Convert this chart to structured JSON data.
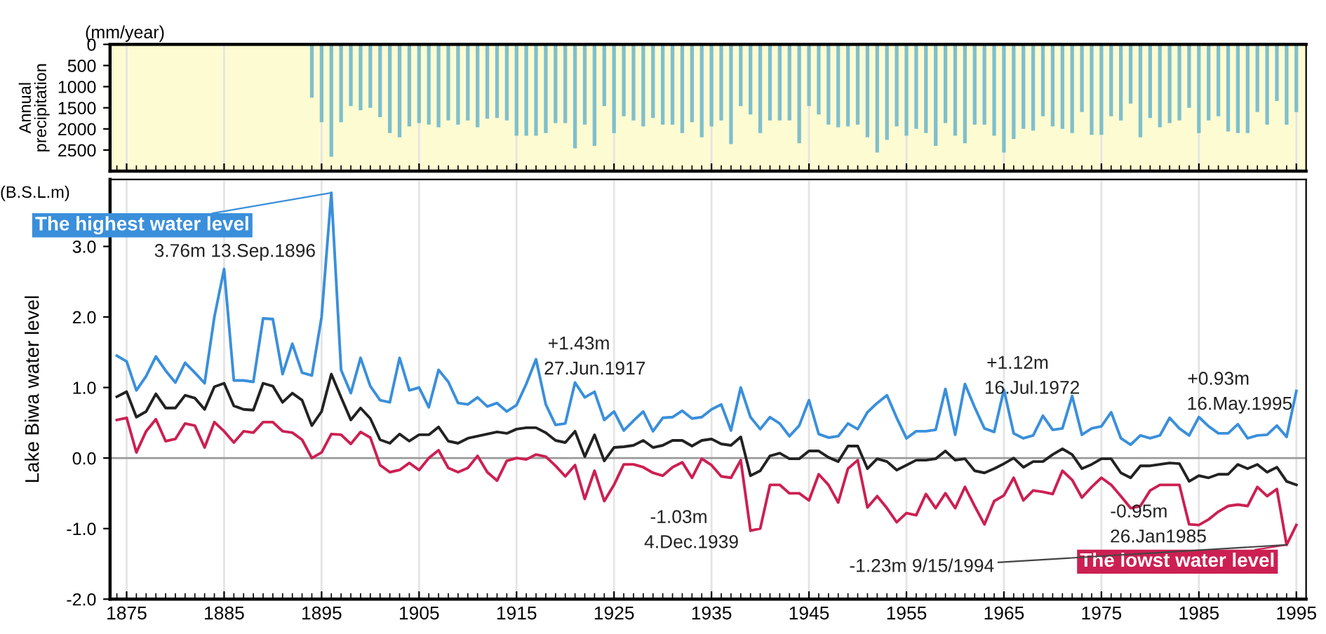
{
  "chart_data": [
    {
      "type": "bar",
      "ylabel": "Annual precipitation",
      "annotations": [
        "(mm/year)"
      ],
      "x": [
        1894,
        1895,
        1896,
        1897,
        1898,
        1899,
        1900,
        1901,
        1902,
        1903,
        1904,
        1905,
        1906,
        1907,
        1908,
        1909,
        1910,
        1911,
        1912,
        1913,
        1914,
        1915,
        1916,
        1917,
        1918,
        1919,
        1920,
        1921,
        1922,
        1923,
        1924,
        1925,
        1926,
        1927,
        1928,
        1929,
        1930,
        1931,
        1932,
        1933,
        1934,
        1935,
        1936,
        1937,
        1938,
        1939,
        1940,
        1941,
        1942,
        1943,
        1944,
        1945,
        1946,
        1947,
        1948,
        1949,
        1950,
        1951,
        1952,
        1953,
        1954,
        1955,
        1956,
        1957,
        1958,
        1959,
        1960,
        1961,
        1962,
        1963,
        1964,
        1965,
        1966,
        1967,
        1968,
        1969,
        1970,
        1971,
        1972,
        1973,
        1974,
        1975,
        1976,
        1977,
        1978,
        1979,
        1980,
        1981,
        1982,
        1983,
        1984,
        1985,
        1986,
        1987,
        1988,
        1989,
        1990,
        1991,
        1992,
        1993,
        1994,
        1995
      ],
      "series": [
        {
          "color": "#7fbfcc",
          "values": [
            1260,
            1840,
            2660,
            1840,
            1460,
            1560,
            1500,
            1720,
            2100,
            2200,
            1940,
            1860,
            1900,
            1960,
            1800,
            1900,
            1800,
            1960,
            1760,
            1740,
            1800,
            2160,
            2160,
            2160,
            2100,
            1860,
            1860,
            2460,
            1900,
            2400,
            1460,
            2100,
            1700,
            1800,
            1940,
            1740,
            1900,
            1900,
            2100,
            1840,
            2200,
            1940,
            1800,
            2360,
            1460,
            1660,
            2100,
            1800,
            1800,
            1800,
            2340,
            1460,
            1660,
            1900,
            1960,
            1940,
            1900,
            2200,
            2560,
            2260,
            1940,
            2160,
            2000,
            2100,
            2400,
            1860,
            2160,
            2340,
            1900,
            1900,
            2160,
            2560,
            2240,
            2000,
            2040,
            1700,
            1940,
            2000,
            2100,
            1600,
            2140,
            2140,
            1700,
            1800,
            1400,
            2200,
            1740,
            1960,
            1860,
            1800,
            1500,
            2100,
            1800,
            1700,
            2060,
            2100,
            2100,
            1600,
            1900,
            1340,
            1900,
            1600
          ]
        }
      ],
      "xlim": [
        1873.3,
        1996
      ],
      "ylim": [
        3000,
        0
      ],
      "yticks": [
        0,
        500,
        1000,
        1500,
        2000,
        2500
      ],
      "xticks": [
        {
          "value": 1874,
          "label": null
        },
        1875,
        {
          "value": 1876,
          "label": null
        },
        {
          "value": 1877,
          "label": null
        },
        {
          "value": 1878,
          "label": null
        },
        {
          "value": 1879,
          "label": null
        },
        {
          "value": 1880,
          "label": null
        },
        {
          "value": 1881,
          "label": null
        },
        {
          "value": 1882,
          "label": null
        },
        {
          "value": 1883,
          "label": null
        },
        {
          "value": 1884,
          "label": null
        },
        1885,
        {
          "value": 1886,
          "label": null
        },
        {
          "value": 1887,
          "label": null
        },
        {
          "value": 1888,
          "label": null
        },
        {
          "value": 1889,
          "label": null
        },
        {
          "value": 1890,
          "label": null
        },
        {
          "value": 1891,
          "label": null
        },
        {
          "value": 1892,
          "label": null
        },
        {
          "value": 1893,
          "label": null
        },
        {
          "value": 1894,
          "label": null
        },
        1895,
        {
          "value": 1896,
          "label": null
        },
        {
          "value": 1897,
          "label": null
        },
        {
          "value": 1898,
          "label": null
        },
        {
          "value": 1899,
          "label": null
        },
        {
          "value": 1900,
          "label": null
        },
        {
          "value": 1901,
          "label": null
        },
        {
          "value": 1902,
          "label": null
        },
        {
          "value": 1903,
          "label": null
        },
        {
          "value": 1904,
          "label": null
        },
        1905,
        {
          "value": 1906,
          "label": null
        },
        {
          "value": 1907,
          "label": null
        },
        {
          "value": 1908,
          "label": null
        },
        {
          "value": 1909,
          "label": null
        },
        {
          "value": 1910,
          "label": null
        },
        {
          "value": 1911,
          "label": null
        },
        {
          "value": 1912,
          "label": null
        },
        {
          "value": 1913,
          "label": null
        },
        {
          "value": 1914,
          "label": null
        },
        1915,
        {
          "value": 1916,
          "label": null
        },
        {
          "value": 1917,
          "label": null
        },
        {
          "value": 1918,
          "label": null
        },
        {
          "value": 1919,
          "label": null
        },
        {
          "value": 1920,
          "label": null
        },
        {
          "value": 1921,
          "label": null
        },
        {
          "value": 1922,
          "label": null
        },
        {
          "value": 1923,
          "label": null
        },
        {
          "value": 1924,
          "label": null
        },
        1925,
        {
          "value": 1926,
          "label": null
        },
        {
          "value": 1927,
          "label": null
        },
        {
          "value": 1928,
          "label": null
        },
        {
          "value": 1929,
          "label": null
        },
        {
          "value": 1930,
          "label": null
        },
        {
          "value": 1931,
          "label": null
        },
        {
          "value": 1932,
          "label": null
        },
        {
          "value": 1933,
          "label": null
        },
        {
          "value": 1934,
          "label": null
        },
        1935,
        {
          "value": 1936,
          "label": null
        },
        {
          "value": 1937,
          "label": null
        },
        {
          "value": 1938,
          "label": null
        },
        {
          "value": 1939,
          "label": null
        },
        {
          "value": 1940,
          "label": null
        },
        {
          "value": 1941,
          "label": null
        },
        {
          "value": 1942,
          "label": null
        },
        {
          "value": 1943,
          "label": null
        },
        {
          "value": 1944,
          "label": null
        },
        1945,
        {
          "value": 1946,
          "label": null
        },
        {
          "value": 1947,
          "label": null
        },
        {
          "value": 1948,
          "label": null
        },
        {
          "value": 1949,
          "label": null
        },
        {
          "value": 1950,
          "label": null
        },
        {
          "value": 1951,
          "label": null
        },
        {
          "value": 1952,
          "label": null
        },
        {
          "value": 1953,
          "label": null
        },
        {
          "value": 1954,
          "label": null
        },
        1955,
        {
          "value": 1956,
          "label": null
        },
        {
          "value": 1957,
          "label": null
        },
        {
          "value": 1958,
          "label": null
        },
        {
          "value": 1959,
          "label": null
        },
        {
          "value": 1960,
          "label": null
        },
        {
          "value": 1961,
          "label": null
        },
        {
          "value": 1962,
          "label": null
        },
        {
          "value": 1963,
          "label": null
        },
        {
          "value": 1964,
          "label": null
        },
        1965,
        {
          "value": 1966,
          "label": null
        },
        {
          "value": 1967,
          "label": null
        },
        {
          "value": 1968,
          "label": null
        },
        {
          "value": 1969,
          "label": null
        },
        {
          "value": 1970,
          "label": null
        },
        {
          "value": 1971,
          "label": null
        },
        {
          "value": 1972,
          "label": null
        },
        {
          "value": 1973,
          "label": null
        },
        {
          "value": 1974,
          "label": null
        },
        1975,
        {
          "value": 1976,
          "label": null
        },
        {
          "value": 1977,
          "label": null
        },
        {
          "value": 1978,
          "label": null
        },
        {
          "value": 1979,
          "label": null
        },
        {
          "value": 1980,
          "label": null
        },
        {
          "value": 1981,
          "label": null
        },
        {
          "value": 1982,
          "label": null
        },
        {
          "value": 1983,
          "label": null
        },
        {
          "value": 1984,
          "label": null
        },
        1985,
        {
          "value": 1986,
          "label": null
        },
        {
          "value": 1987,
          "label": null
        },
        {
          "value": 1988,
          "label": null
        },
        {
          "value": 1989,
          "label": null
        },
        {
          "value": 1990,
          "label": null
        },
        {
          "value": 1991,
          "label": null
        },
        {
          "value": 1992,
          "label": null
        },
        {
          "value": 1993,
          "label": null
        },
        {
          "value": 1994,
          "label": null
        },
        1995
      ],
      "grid": "x",
      "tick_labels": "y"
    },
    {
      "type": "line",
      "ylabel": "Lake Biwa water level",
      "marker": "none",
      "line_style": "solid",
      "grid": "x",
      "x": [
        1874,
        1875,
        1876,
        1877,
        1878,
        1879,
        1880,
        1881,
        1882,
        1883,
        1884,
        1885,
        1886,
        1887,
        1888,
        1889,
        1890,
        1891,
        1892,
        1893,
        1894,
        1895,
        1896,
        1897,
        1898,
        1899,
        1900,
        1901,
        1902,
        1903,
        1904,
        1905,
        1906,
        1907,
        1908,
        1909,
        1910,
        1911,
        1912,
        1913,
        1914,
        1915,
        1916,
        1917,
        1918,
        1919,
        1920,
        1921,
        1922,
        1923,
        1924,
        1925,
        1926,
        1927,
        1928,
        1929,
        1930,
        1931,
        1932,
        1933,
        1934,
        1935,
        1936,
        1937,
        1938,
        1939,
        1940,
        1941,
        1942,
        1943,
        1944,
        1945,
        1946,
        1947,
        1948,
        1949,
        1950,
        1951,
        1952,
        1953,
        1954,
        1955,
        1956,
        1957,
        1958,
        1959,
        1960,
        1961,
        1962,
        1963,
        1964,
        1965,
        1966,
        1967,
        1968,
        1969,
        1970,
        1971,
        1972,
        1973,
        1974,
        1975,
        1976,
        1977,
        1978,
        1979,
        1980,
        1981,
        1982,
        1983,
        1984,
        1985,
        1986,
        1987,
        1988,
        1989,
        1990,
        1991,
        1992,
        1993,
        1994,
        1995
      ],
      "series": [
        {
          "color": "#3a8fdb",
          "values": [
            1.45,
            1.37,
            0.96,
            1.16,
            1.44,
            1.24,
            1.07,
            1.35,
            1.21,
            1.06,
            2.0,
            2.68,
            1.1,
            1.1,
            1.08,
            1.98,
            1.97,
            1.19,
            1.62,
            1.21,
            1.17,
            2.0,
            3.76,
            1.25,
            0.92,
            1.42,
            1.02,
            0.82,
            0.79,
            1.42,
            0.96,
            1.0,
            0.72,
            1.25,
            1.08,
            0.78,
            0.76,
            0.86,
            0.73,
            0.78,
            0.66,
            0.75,
            1.05,
            1.4,
            0.76,
            0.47,
            0.49,
            1.07,
            0.86,
            0.94,
            0.54,
            0.66,
            0.39,
            0.53,
            0.66,
            0.38,
            0.57,
            0.58,
            0.67,
            0.56,
            0.58,
            0.69,
            0.76,
            0.39,
            1.0,
            0.58,
            0.41,
            0.58,
            0.49,
            0.31,
            0.46,
            0.82,
            0.34,
            0.29,
            0.31,
            0.49,
            0.41,
            0.65,
            0.78,
            0.89,
            0.57,
            0.28,
            0.38,
            0.38,
            0.4,
            0.98,
            0.33,
            1.05,
            0.72,
            0.42,
            0.37,
            0.97,
            0.35,
            0.28,
            0.32,
            0.6,
            0.4,
            0.42,
            0.88,
            0.33,
            0.42,
            0.45,
            0.65,
            0.28,
            0.19,
            0.32,
            0.28,
            0.32,
            0.57,
            0.42,
            0.32,
            0.58,
            0.45,
            0.35,
            0.35,
            0.48,
            0.28,
            0.32,
            0.33,
            0.46,
            0.3,
            0.95
          ]
        },
        {
          "color": "#222222",
          "values": [
            0.87,
            0.94,
            0.58,
            0.66,
            0.91,
            0.71,
            0.71,
            0.89,
            0.85,
            0.69,
            1.01,
            1.06,
            0.74,
            0.69,
            0.68,
            1.06,
            1.02,
            0.79,
            0.92,
            0.82,
            0.46,
            0.66,
            1.19,
            0.86,
            0.54,
            0.71,
            0.56,
            0.26,
            0.21,
            0.34,
            0.24,
            0.33,
            0.33,
            0.44,
            0.24,
            0.21,
            0.28,
            0.31,
            0.34,
            0.37,
            0.35,
            0.41,
            0.43,
            0.43,
            0.36,
            0.25,
            0.22,
            0.38,
            0.02,
            0.33,
            -0.04,
            0.15,
            0.16,
            0.18,
            0.25,
            0.15,
            0.18,
            0.25,
            0.25,
            0.17,
            0.25,
            0.27,
            0.2,
            0.18,
            0.3,
            -0.25,
            -0.18,
            0.03,
            0.07,
            -0.01,
            -0.01,
            0.1,
            0.1,
            0.01,
            -0.05,
            0.17,
            0.17,
            -0.15,
            -0.01,
            -0.05,
            -0.17,
            -0.1,
            -0.03,
            -0.03,
            -0.01,
            0.1,
            -0.03,
            -0.01,
            -0.18,
            -0.21,
            -0.15,
            -0.08,
            0.0,
            -0.13,
            -0.05,
            -0.05,
            0.05,
            0.13,
            0.05,
            -0.15,
            -0.09,
            -0.01,
            -0.01,
            -0.21,
            -0.28,
            -0.11,
            -0.11,
            -0.09,
            -0.07,
            -0.08,
            -0.33,
            -0.25,
            -0.28,
            -0.23,
            -0.23,
            -0.09,
            -0.15,
            -0.09,
            -0.2,
            -0.13,
            -0.33,
            -0.38
          ]
        },
        {
          "color": "#cc2052",
          "values": [
            0.54,
            0.57,
            0.08,
            0.38,
            0.55,
            0.24,
            0.27,
            0.49,
            0.46,
            0.15,
            0.51,
            0.38,
            0.22,
            0.38,
            0.36,
            0.51,
            0.51,
            0.38,
            0.36,
            0.26,
            0.0,
            0.08,
            0.34,
            0.33,
            0.2,
            0.37,
            0.29,
            -0.1,
            -0.2,
            -0.17,
            -0.07,
            -0.17,
            0.0,
            0.11,
            -0.14,
            -0.2,
            -0.14,
            0.03,
            -0.2,
            -0.32,
            -0.04,
            0.0,
            -0.02,
            0.05,
            0.02,
            -0.11,
            -0.26,
            -0.1,
            -0.58,
            -0.18,
            -0.61,
            -0.38,
            -0.09,
            -0.09,
            -0.13,
            -0.21,
            -0.25,
            -0.13,
            -0.06,
            -0.28,
            -0.01,
            -0.1,
            -0.26,
            -0.28,
            -0.03,
            -1.03,
            -1.0,
            -0.38,
            -0.38,
            -0.5,
            -0.5,
            -0.6,
            -0.23,
            -0.38,
            -0.63,
            -0.15,
            -0.03,
            -0.7,
            -0.54,
            -0.71,
            -0.91,
            -0.78,
            -0.81,
            -0.51,
            -0.71,
            -0.5,
            -0.71,
            -0.41,
            -0.68,
            -0.94,
            -0.61,
            -0.53,
            -0.28,
            -0.6,
            -0.46,
            -0.48,
            -0.51,
            -0.18,
            -0.31,
            -0.56,
            -0.41,
            -0.28,
            -0.38,
            -0.54,
            -0.71,
            -0.68,
            -0.46,
            -0.38,
            -0.38,
            -0.38,
            -0.94,
            -0.95,
            -0.87,
            -0.76,
            -0.68,
            -0.66,
            -0.68,
            -0.41,
            -0.54,
            -0.44,
            -1.23,
            -0.95
          ]
        }
      ],
      "xlim": [
        1873.3,
        1996
      ],
      "ylim": [
        -2.0,
        3.95
      ],
      "yticks": [
        {
          "value": -2,
          "label": "-2.0"
        },
        {
          "value": -1,
          "label": "-1.0"
        },
        {
          "value": 0,
          "label": "0.0"
        },
        {
          "value": 1,
          "label": "1.0"
        },
        {
          "value": 2,
          "label": "2.0"
        },
        {
          "value": 3,
          "label": "3.0"
        }
      ],
      "xticks": [
        {
          "value": 1874,
          "label": null
        },
        1875,
        {
          "value": 1876,
          "label": null
        },
        {
          "value": 1877,
          "label": null
        },
        {
          "value": 1878,
          "label": null
        },
        {
          "value": 1879,
          "label": null
        },
        {
          "value": 1880,
          "label": null
        },
        {
          "value": 1881,
          "label": null
        },
        {
          "value": 1882,
          "label": null
        },
        {
          "value": 1883,
          "label": null
        },
        {
          "value": 1884,
          "label": null
        },
        1885,
        {
          "value": 1886,
          "label": null
        },
        {
          "value": 1887,
          "label": null
        },
        {
          "value": 1888,
          "label": null
        },
        {
          "value": 1889,
          "label": null
        },
        {
          "value": 1890,
          "label": null
        },
        {
          "value": 1891,
          "label": null
        },
        {
          "value": 1892,
          "label": null
        },
        {
          "value": 1893,
          "label": null
        },
        {
          "value": 1894,
          "label": null
        },
        1895,
        {
          "value": 1896,
          "label": null
        },
        {
          "value": 1897,
          "label": null
        },
        {
          "value": 1898,
          "label": null
        },
        {
          "value": 1899,
          "label": null
        },
        {
          "value": 1900,
          "label": null
        },
        {
          "value": 1901,
          "label": null
        },
        {
          "value": 1902,
          "label": null
        },
        {
          "value": 1903,
          "label": null
        },
        {
          "value": 1904,
          "label": null
        },
        1905,
        {
          "value": 1906,
          "label": null
        },
        {
          "value": 1907,
          "label": null
        },
        {
          "value": 1908,
          "label": null
        },
        {
          "value": 1909,
          "label": null
        },
        {
          "value": 1910,
          "label": null
        },
        {
          "value": 1911,
          "label": null
        },
        {
          "value": 1912,
          "label": null
        },
        {
          "value": 1913,
          "label": null
        },
        {
          "value": 1914,
          "label": null
        },
        1915,
        {
          "value": 1916,
          "label": null
        },
        {
          "value": 1917,
          "label": null
        },
        {
          "value": 1918,
          "label": null
        },
        {
          "value": 1919,
          "label": null
        },
        {
          "value": 1920,
          "label": null
        },
        {
          "value": 1921,
          "label": null
        },
        {
          "value": 1922,
          "label": null
        },
        {
          "value": 1923,
          "label": null
        },
        {
          "value": 1924,
          "label": null
        },
        1925,
        {
          "value": 1926,
          "label": null
        },
        {
          "value": 1927,
          "label": null
        },
        {
          "value": 1928,
          "label": null
        },
        {
          "value": 1929,
          "label": null
        },
        {
          "value": 1930,
          "label": null
        },
        {
          "value": 1931,
          "label": null
        },
        {
          "value": 1932,
          "label": null
        },
        {
          "value": 1933,
          "label": null
        },
        {
          "value": 1934,
          "label": null
        },
        1935,
        {
          "value": 1936,
          "label": null
        },
        {
          "value": 1937,
          "label": null
        },
        {
          "value": 1938,
          "label": null
        },
        {
          "value": 1939,
          "label": null
        },
        {
          "value": 1940,
          "label": null
        },
        {
          "value": 1941,
          "label": null
        },
        {
          "value": 1942,
          "label": null
        },
        {
          "value": 1943,
          "label": null
        },
        {
          "value": 1944,
          "label": null
        },
        1945,
        {
          "value": 1946,
          "label": null
        },
        {
          "value": 1947,
          "label": null
        },
        {
          "value": 1948,
          "label": null
        },
        {
          "value": 1949,
          "label": null
        },
        {
          "value": 1950,
          "label": null
        },
        {
          "value": 1951,
          "label": null
        },
        {
          "value": 1952,
          "label": null
        },
        {
          "value": 1953,
          "label": null
        },
        {
          "value": 1954,
          "label": null
        },
        1955,
        {
          "value": 1956,
          "label": null
        },
        {
          "value": 1957,
          "label": null
        },
        {
          "value": 1958,
          "label": null
        },
        {
          "value": 1959,
          "label": null
        },
        {
          "value": 1960,
          "label": null
        },
        {
          "value": 1961,
          "label": null
        },
        {
          "value": 1962,
          "label": null
        },
        {
          "value": 1963,
          "label": null
        },
        {
          "value": 1964,
          "label": null
        },
        1965,
        {
          "value": 1966,
          "label": null
        },
        {
          "value": 1967,
          "label": null
        },
        {
          "value": 1968,
          "label": null
        },
        {
          "value": 1969,
          "label": null
        },
        {
          "value": 1970,
          "label": null
        },
        {
          "value": 1971,
          "label": null
        },
        {
          "value": 1972,
          "label": null
        },
        {
          "value": 1973,
          "label": null
        },
        {
          "value": 1974,
          "label": null
        },
        1975,
        {
          "value": 1976,
          "label": null
        },
        {
          "value": 1977,
          "label": null
        },
        {
          "value": 1978,
          "label": null
        },
        {
          "value": 1979,
          "label": null
        },
        {
          "value": 1980,
          "label": null
        },
        {
          "value": 1981,
          "label": null
        },
        {
          "value": 1982,
          "label": null
        },
        {
          "value": 1983,
          "label": null
        },
        {
          "value": 1984,
          "label": null
        },
        1985,
        {
          "value": 1986,
          "label": null
        },
        {
          "value": 1987,
          "label": null
        },
        {
          "value": 1988,
          "label": null
        },
        {
          "value": 1989,
          "label": null
        },
        {
          "value": 1990,
          "label": null
        },
        {
          "value": 1991,
          "label": null
        },
        {
          "value": 1992,
          "label": null
        },
        {
          "value": 1993,
          "label": null
        },
        {
          "value": 1994,
          "label": null
        },
        1995
      ],
      "ref_lines": [
        {
          "axis": "y",
          "value": 0,
          "color": "#9a9a9a"
        }
      ],
      "annotations": [
        "(B.S.L.m)",
        {
          "text": "The highest water level",
          "x": 1896,
          "y": 3.76
        },
        {
          "text": "3.76m 13.Sep.1896",
          "x": 1896,
          "y": 3.76
        },
        {
          "text": "+1.43m",
          "x": 1917,
          "y": 1.43
        },
        {
          "text": "27.Jun.1917",
          "x": 1917,
          "y": 1.43
        },
        {
          "text": "-1.03m",
          "x": 1939,
          "y": -1.03
        },
        {
          "text": "4.Dec.1939",
          "x": 1939,
          "y": -1.03
        },
        {
          "text": "+1.12m",
          "x": 1972,
          "y": 0.88
        },
        {
          "text": "16.Jul.1972",
          "x": 1972,
          "y": 0.88
        },
        {
          "text": "+0.93m",
          "x": 1995,
          "y": 0.93
        },
        {
          "text": "16.May.1995",
          "x": 1995,
          "y": 0.93
        },
        {
          "text": "-0.95m",
          "x": 1985,
          "y": -0.95
        },
        {
          "text": "26.Jan1985",
          "x": 1985,
          "y": -0.95
        },
        {
          "text": "The lowst water level",
          "x": 1994,
          "y": -1.23
        },
        {
          "text": "-1.23m 9/15/1994",
          "x": 1994,
          "y": -1.23
        }
      ]
    }
  ]
}
